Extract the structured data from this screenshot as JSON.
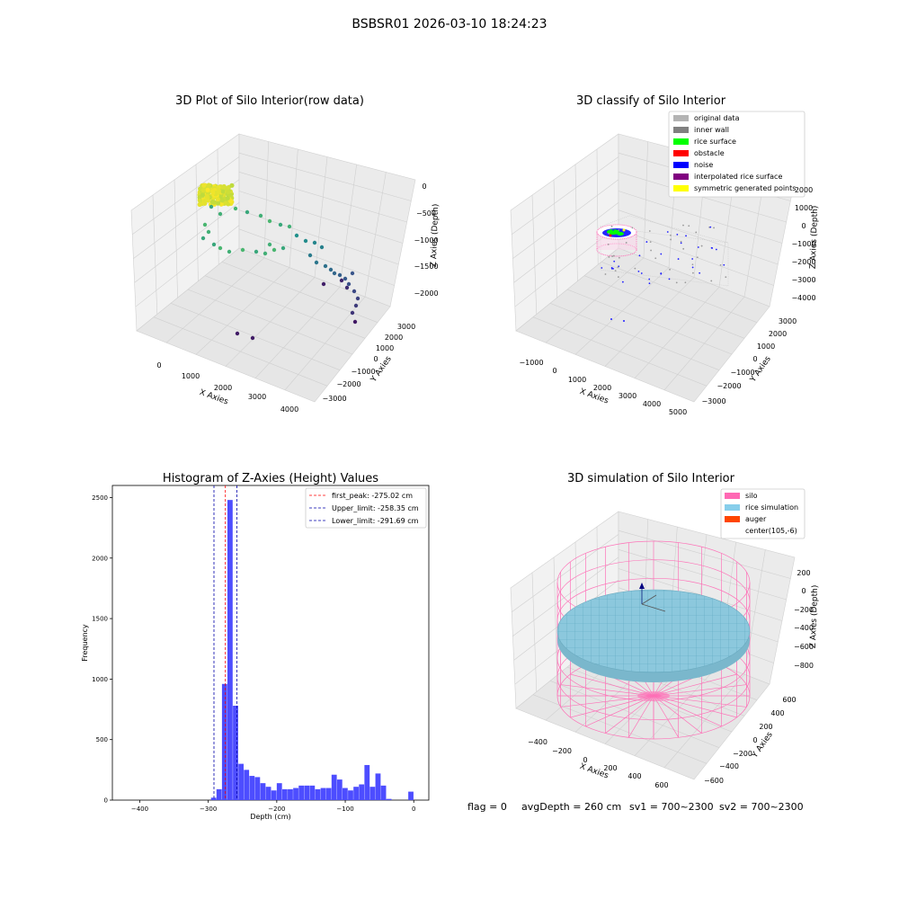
{
  "suptitle": "BSBSR01 2026-03-10 18:24:23",
  "status_line": {
    "flag": "flag = 0",
    "avg_depth": "avgDepth = 260 cm",
    "sv1": "sv1 = 700~2300",
    "sv2": "sv2 = 700~2300"
  },
  "chart_data": [
    {
      "type": "scatter",
      "title": "3D Plot of Silo Interior(row data)",
      "xlabel": "X Axies",
      "ylabel": "Y Axies",
      "zlabel": "Z Axies (Depth)",
      "x_ticks": [
        "0",
        "1000",
        "2000",
        "3000",
        "4000"
      ],
      "y_ticks": [
        "3000",
        "2000",
        "1000",
        "0",
        "−1000",
        "−2000",
        "−3000"
      ],
      "z_ticks": [
        "0",
        "−500",
        "−1000",
        "−1500",
        "−2000"
      ],
      "colormap": "viridis",
      "grid": true
    },
    {
      "type": "scatter",
      "title": "3D classify of Silo Interior",
      "xlabel": "X Axies",
      "ylabel": "Y Axies",
      "zlabel": "Z Axies (Depth)",
      "x_ticks": [
        "−1000",
        "0",
        "1000",
        "2000",
        "3000",
        "4000",
        "5000"
      ],
      "y_ticks": [
        "3000",
        "2000",
        "1000",
        "0",
        "−1000",
        "−2000",
        "−3000"
      ],
      "z_ticks": [
        "2000",
        "1000",
        "0",
        "−1000",
        "−2000",
        "−3000",
        "−4000"
      ],
      "legend_position": "top-right",
      "legend": [
        {
          "label": "original data",
          "color": "#b4b4b4"
        },
        {
          "label": "inner wall",
          "color": "#808080"
        },
        {
          "label": "rice surface",
          "color": "#00ff00"
        },
        {
          "label": "obstacle",
          "color": "#ff0000"
        },
        {
          "label": "noise",
          "color": "#0000ff"
        },
        {
          "label": "interpolated rice surface",
          "color": "#800080"
        },
        {
          "label": "symmetric generated points",
          "color": "#ffff00"
        }
      ],
      "grid": true
    },
    {
      "type": "bar",
      "title": "Histogram of Z-Axies (Height) Values",
      "xlabel": "Depth (cm)",
      "ylabel": "Frequency",
      "xlim": [
        -440,
        22
      ],
      "ylim": [
        0,
        2600
      ],
      "x_ticks": [
        -400,
        -300,
        -200,
        -100,
        0
      ],
      "y_ticks": [
        0,
        500,
        1000,
        1500,
        2000,
        2500
      ],
      "bar_color": "#4d4dff",
      "bin_width": 8,
      "bins": [
        {
          "x": -296,
          "y": 20
        },
        {
          "x": -288,
          "y": 90
        },
        {
          "x": -280,
          "y": 960
        },
        {
          "x": -272,
          "y": 2480
        },
        {
          "x": -264,
          "y": 780
        },
        {
          "x": -256,
          "y": 300
        },
        {
          "x": -248,
          "y": 250
        },
        {
          "x": -240,
          "y": 200
        },
        {
          "x": -232,
          "y": 190
        },
        {
          "x": -224,
          "y": 140
        },
        {
          "x": -216,
          "y": 110
        },
        {
          "x": -208,
          "y": 80
        },
        {
          "x": -200,
          "y": 140
        },
        {
          "x": -192,
          "y": 90
        },
        {
          "x": -184,
          "y": 90
        },
        {
          "x": -176,
          "y": 100
        },
        {
          "x": -168,
          "y": 120
        },
        {
          "x": -160,
          "y": 120
        },
        {
          "x": -152,
          "y": 120
        },
        {
          "x": -144,
          "y": 90
        },
        {
          "x": -136,
          "y": 100
        },
        {
          "x": -128,
          "y": 100
        },
        {
          "x": -120,
          "y": 210
        },
        {
          "x": -112,
          "y": 170
        },
        {
          "x": -104,
          "y": 100
        },
        {
          "x": -96,
          "y": 80
        },
        {
          "x": -88,
          "y": 110
        },
        {
          "x": -80,
          "y": 130
        },
        {
          "x": -72,
          "y": 290
        },
        {
          "x": -64,
          "y": 110
        },
        {
          "x": -56,
          "y": 220
        },
        {
          "x": -48,
          "y": 120
        },
        {
          "x": -40,
          "y": 10
        },
        {
          "x": -8,
          "y": 70
        }
      ],
      "vlines": [
        {
          "label": "first_peak: -275.02 cm",
          "value": -275.02,
          "color": "#ff0000"
        },
        {
          "label": "Upper_limit: -258.35 cm",
          "value": -258.35,
          "color": "#0000aa"
        },
        {
          "label": "Lower_limit: -291.69 cm",
          "value": -291.69,
          "color": "#0000aa"
        }
      ],
      "legend_position": "top-right"
    },
    {
      "type": "area",
      "title": "3D simulation of Silo Interior",
      "xlabel": "X Axies",
      "ylabel": "Y Axies",
      "zlabel": "Z Axies (Depth)",
      "x_ticks": [
        "−400",
        "−200",
        "0",
        "200",
        "400",
        "600"
      ],
      "y_ticks": [
        "600",
        "400",
        "200",
        "0",
        "−200",
        "−400",
        "−600"
      ],
      "z_ticks": [
        "200",
        "0",
        "−200",
        "−400",
        "−600",
        "−800"
      ],
      "legend_position": "top-right",
      "legend": [
        {
          "label": "silo",
          "color": "#ff69b4"
        },
        {
          "label": "rice simulation",
          "color": "#87ceeb"
        },
        {
          "label": "auger",
          "color": "#ff4500"
        },
        {
          "label": "center(105,-6)",
          "color": "#ffffff"
        }
      ],
      "grid": true
    }
  ]
}
